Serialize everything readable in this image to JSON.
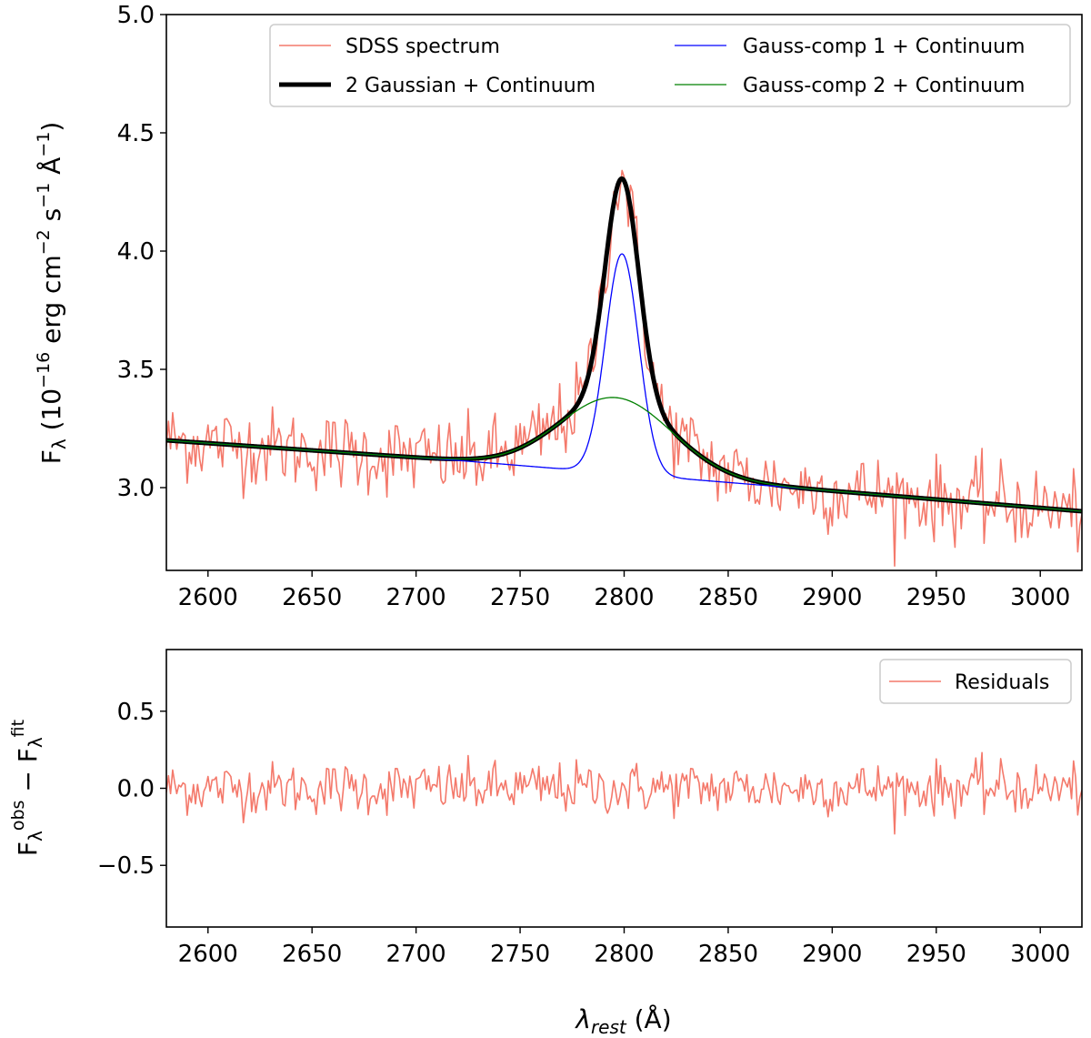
{
  "chart_data": [
    {
      "type": "line",
      "panel": "fit",
      "title": "",
      "xlabel": "",
      "ylabel": "F_λ (10^-16 erg cm^-2 s^-1 Å^-1)",
      "ylabel_parts": {
        "base": "F",
        "sub": "λ",
        "p1": " (10",
        "e1": "−16",
        "p2": " erg cm",
        "e2": "−2",
        "p3": " s",
        "e3": "−1",
        "p4": " Å",
        "e4": "−1",
        "p5": ")"
      },
      "xlim": [
        2580,
        3020
      ],
      "ylim": [
        2.65,
        5.0
      ],
      "x_ticks": [
        2600,
        2650,
        2700,
        2750,
        2800,
        2850,
        2900,
        2950,
        3000
      ],
      "x_tick_labels": [
        "2600",
        "2650",
        "2700",
        "2750",
        "2800",
        "2850",
        "2900",
        "2950",
        "3000"
      ],
      "y_ticks": [
        3.0,
        3.5,
        4.0,
        4.5,
        5.0
      ],
      "y_tick_labels": [
        "3.0",
        "3.5",
        "4.0",
        "4.5",
        "5.0"
      ],
      "grid": false,
      "legend_position": "top-right",
      "legend_columns": 2,
      "model": {
        "continuum": {
          "start": [
            2580,
            3.2
          ],
          "knee": [
            2720,
            3.115
          ],
          "end": [
            3020,
            2.9
          ]
        },
        "gauss1": {
          "center": 2799,
          "amplitude": 0.93,
          "sigma": 8.0
        },
        "gauss2": {
          "center": 2796,
          "amplitude": 0.32,
          "sigma": 27.0
        }
      },
      "noise_sigma": 0.085,
      "series": [
        {
          "name": "SDSS spectrum",
          "color": "#f4796b",
          "style": "noisy",
          "legend_col": 0
        },
        {
          "name": "2 Gaussian + Continuum",
          "color": "#000000",
          "style": "thick",
          "legend_col": 0
        },
        {
          "name": "Gauss-comp 1 + Continuum",
          "color": "#0000ff",
          "style": "thin",
          "legend_col": 1
        },
        {
          "name": "Gauss-comp 2 + Continuum",
          "color": "#008000",
          "style": "thin",
          "legend_col": 1
        }
      ]
    },
    {
      "type": "line",
      "panel": "residuals",
      "title": "",
      "xlabel": "λ_rest (Å)",
      "xlabel_parts": {
        "sym": "λ",
        "sub": "rest",
        "unit": " (Å)"
      },
      "ylabel": "F_λ^obs − F_λ^fit",
      "ylabel_parts": {
        "a": "F",
        "a_sub": "λ",
        "a_sup": "obs",
        "mid": " − ",
        "b": "F",
        "b_sub": "λ",
        "b_sup": "fit"
      },
      "xlim": [
        2580,
        3020
      ],
      "ylim": [
        -0.9,
        0.9
      ],
      "x_ticks": [
        2600,
        2650,
        2700,
        2750,
        2800,
        2850,
        2900,
        2950,
        3000
      ],
      "x_tick_labels": [
        "2600",
        "2650",
        "2700",
        "2750",
        "2800",
        "2850",
        "2900",
        "2950",
        "3000"
      ],
      "y_ticks": [
        0.5,
        0.0,
        -0.5
      ],
      "y_tick_labels": [
        "0.5",
        "0.0",
        "−0.5"
      ],
      "grid": false,
      "legend_position": "top-right",
      "noise_sigma": 0.085,
      "series": [
        {
          "name": "Residuals",
          "color": "#f4796b",
          "style": "noisy"
        }
      ]
    }
  ]
}
